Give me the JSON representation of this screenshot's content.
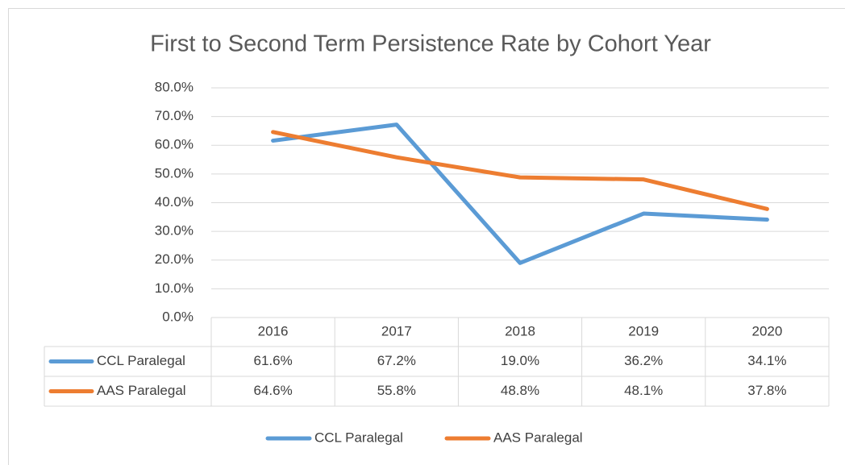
{
  "chart_data": {
    "type": "line",
    "title": "First to Second Term Persistence Rate by Cohort Year",
    "categories": [
      "2016",
      "2017",
      "2018",
      "2019",
      "2020"
    ],
    "series": [
      {
        "name": "CCL Paralegal",
        "color": "#5b9bd5",
        "values": [
          61.6,
          67.2,
          19.0,
          36.2,
          34.1
        ],
        "value_labels": [
          "61.6%",
          "67.2%",
          "19.0%",
          "36.2%",
          "34.1%"
        ]
      },
      {
        "name": "AAS Paralegal",
        "color": "#ed7d31",
        "values": [
          64.6,
          55.8,
          48.8,
          48.1,
          37.8
        ],
        "value_labels": [
          "64.6%",
          "55.8%",
          "48.8%",
          "48.1%",
          "37.8%"
        ]
      }
    ],
    "ylim": [
      0,
      80
    ],
    "yticks": [
      {
        "value": 0,
        "label": "0.0%"
      },
      {
        "value": 10,
        "label": "10.0%"
      },
      {
        "value": 20,
        "label": "20.0%"
      },
      {
        "value": 30,
        "label": "30.0%"
      },
      {
        "value": 40,
        "label": "40.0%"
      },
      {
        "value": 50,
        "label": "50.0%"
      },
      {
        "value": 60,
        "label": "60.0%"
      },
      {
        "value": 70,
        "label": "70.0%"
      },
      {
        "value": 80,
        "label": "80.0%"
      }
    ],
    "grid": true,
    "legend": "bottom"
  }
}
